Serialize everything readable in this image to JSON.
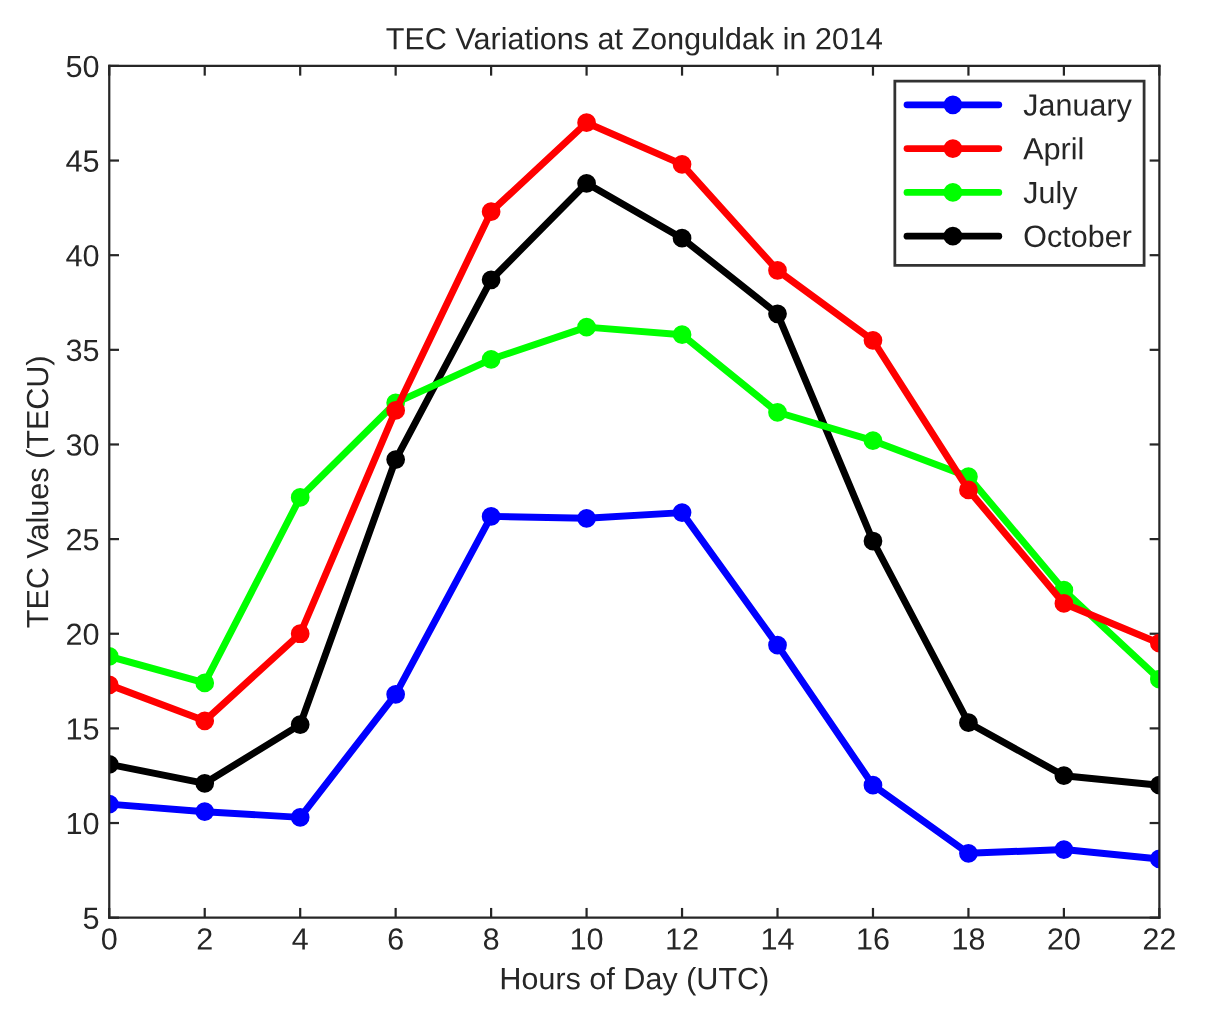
{
  "chart_data": {
    "type": "line",
    "title": "TEC Variations at Zonguldak in 2014",
    "xlabel": "Hours of Day (UTC)",
    "ylabel": "TEC Values (TECU)",
    "x": [
      0,
      2,
      4,
      6,
      8,
      10,
      12,
      14,
      16,
      18,
      20,
      22
    ],
    "series": [
      {
        "name": "January",
        "color": "#0000ff",
        "values": [
          11,
          10.6,
          10.3,
          16.8,
          26.2,
          26.1,
          26.4,
          19.4,
          12,
          8.4,
          8.6,
          8.1
        ]
      },
      {
        "name": "April",
        "color": "#ff0000",
        "values": [
          17.3,
          15.4,
          20,
          31.8,
          42.3,
          47,
          44.8,
          39.2,
          35.5,
          27.6,
          21.6,
          19.5
        ]
      },
      {
        "name": "July",
        "color": "#00ff00",
        "values": [
          18.8,
          17.4,
          27.2,
          32.2,
          34.5,
          36.2,
          35.8,
          31.7,
          30.2,
          28.3,
          22.3,
          17.6
        ]
      },
      {
        "name": "October",
        "color": "#000000",
        "values": [
          13.1,
          12.1,
          15.2,
          29.2,
          38.7,
          43.8,
          40.9,
          36.9,
          24.9,
          15.3,
          12.5,
          12
        ]
      }
    ],
    "xlim": [
      0,
      22
    ],
    "xticks": [
      0,
      2,
      4,
      6,
      8,
      10,
      12,
      14,
      16,
      18,
      20,
      22
    ],
    "ylim": [
      5,
      50
    ],
    "yticks": [
      5,
      10,
      15,
      20,
      25,
      30,
      35,
      40,
      45,
      50
    ],
    "grid": false,
    "legend": "top right",
    "marker": "circle",
    "line_style": "solid"
  }
}
